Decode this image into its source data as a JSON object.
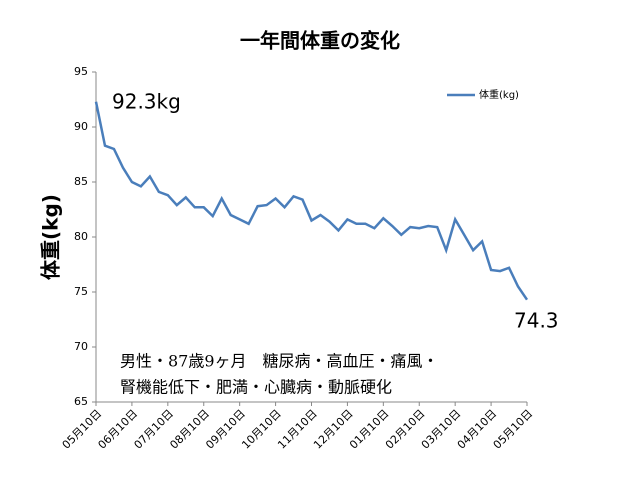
{
  "chart_data": {
    "type": "line",
    "title": "一年間体重の変化",
    "y_label": "体重(kg)",
    "categories": [
      "05月10日",
      null,
      null,
      null,
      "06月10日",
      null,
      null,
      null,
      "07月10日",
      null,
      null,
      null,
      "08月10日",
      null,
      null,
      null,
      "09月10日",
      null,
      null,
      null,
      "10月10日",
      null,
      null,
      null,
      "11月10日",
      null,
      null,
      null,
      "12月10日",
      null,
      null,
      null,
      "01月10日",
      null,
      null,
      null,
      "02月10日",
      null,
      null,
      null,
      "03月10日",
      null,
      null,
      null,
      "04月10日",
      null,
      null,
      null,
      "05月10日"
    ],
    "series": [
      {
        "name": "体重(kg)",
        "color": "#4a7ebb",
        "values": [
          92.3,
          88.3,
          88.0,
          86.3,
          85.0,
          84.6,
          85.5,
          84.1,
          83.8,
          82.9,
          83.6,
          82.7,
          82.7,
          81.9,
          83.5,
          82.0,
          81.6,
          81.2,
          82.8,
          82.9,
          83.5,
          82.7,
          83.7,
          83.4,
          81.5,
          82.0,
          81.4,
          80.6,
          81.6,
          81.2,
          81.2,
          80.8,
          81.7,
          81.0,
          80.2,
          80.9,
          80.8,
          81.0,
          80.9,
          78.8,
          81.6,
          80.2,
          78.8,
          79.6,
          77.0,
          76.9,
          77.2,
          75.5,
          74.3
        ]
      }
    ],
    "ylim": [
      65,
      95
    ],
    "yticks": [
      65,
      70,
      75,
      80,
      85,
      90,
      95
    ],
    "grid": false,
    "legend": "top-right",
    "annotations": [
      "92.3kg",
      "74.3",
      "男性・87歳9ヶ月　糖尿病・高血圧・痛風・",
      "腎機能低下・肥満・心臓病・動脈硬化"
    ]
  }
}
